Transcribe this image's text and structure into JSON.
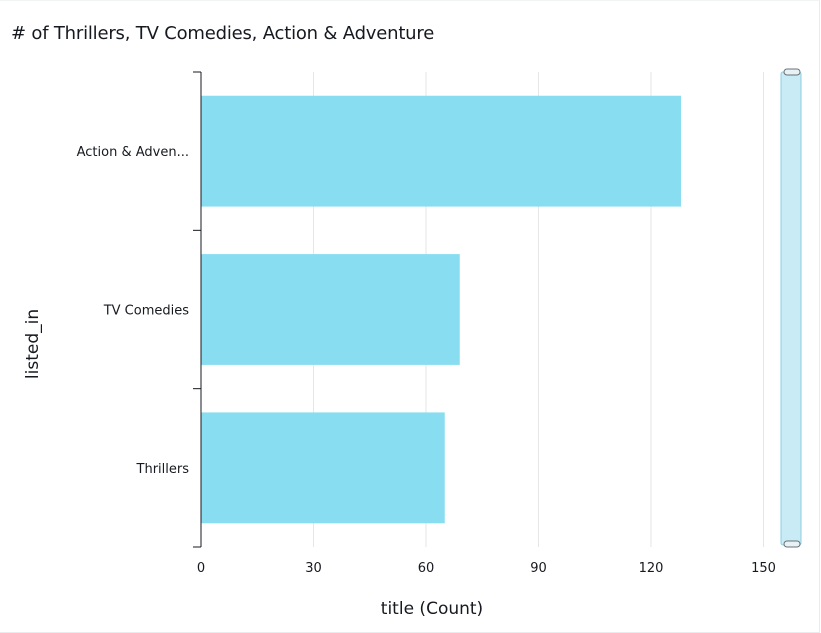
{
  "chart_data": {
    "type": "bar",
    "orientation": "horizontal",
    "title": "# of Thrillers, TV Comedies, Action & Adventure",
    "xlabel": "title (Count)",
    "ylabel": "listed_in",
    "categories": [
      "Action & Adven...",
      "TV Comedies",
      "Thrillers"
    ],
    "values": [
      128,
      69,
      65
    ],
    "xlim": [
      0,
      160
    ],
    "xticks": [
      0,
      30,
      60,
      90,
      120,
      150
    ],
    "grid": true,
    "bar_color": "#88ddf0",
    "scroll_handle_color": "#c9ebf5"
  }
}
